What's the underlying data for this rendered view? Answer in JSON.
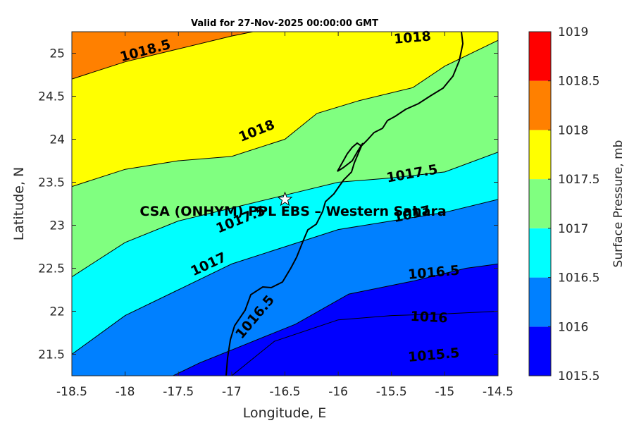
{
  "chart_data": {
    "type": "contour",
    "title": "Valid for 27-Nov-2025 00:00:00 GMT",
    "xlabel": "Longitude, E",
    "ylabel": "Latitude, N",
    "xlim": [
      -18.5,
      -14.5
    ],
    "ylim": [
      21.25,
      25.25
    ],
    "xticks": [
      "-18.5",
      "-18",
      "-17.5",
      "-17",
      "-16.5",
      "-16",
      "-15.5",
      "-15",
      "-14.5"
    ],
    "yticks": [
      "21.5",
      "22",
      "22.5",
      "23",
      "23.5",
      "24",
      "24.5",
      "25"
    ],
    "colorbar": {
      "label": "Surface Pressure, mb",
      "levels": [
        1015.5,
        1016,
        1016.5,
        1017,
        1017.5,
        1018,
        1018.5,
        1019
      ],
      "tick_labels": [
        "1015.5",
        "1016",
        "1016.5",
        "1017",
        "1017.5",
        "1018",
        "1018.5",
        "1019"
      ],
      "colors": [
        "#0000ff",
        "#0080ff",
        "#00ffff",
        "#80ff80",
        "#ffff00",
        "#ff8000",
        "#ff0000",
        "#800000"
      ]
    },
    "contours": [
      {
        "level": 1015.5,
        "label": "1015.5",
        "points": [
          [
            -17.0,
            21.25
          ],
          [
            -16.6,
            21.65
          ],
          [
            -16.0,
            21.9
          ],
          [
            -15.5,
            21.95
          ],
          [
            -15.0,
            21.97
          ],
          [
            -14.5,
            22.0
          ]
        ]
      },
      {
        "level": 1016,
        "label": "1016",
        "points": [
          [
            -17.55,
            21.25
          ],
          [
            -17.3,
            21.4
          ],
          [
            -16.9,
            21.6
          ],
          [
            -16.4,
            21.85
          ],
          [
            -15.9,
            22.2
          ],
          [
            -15.3,
            22.35
          ],
          [
            -14.8,
            22.5
          ],
          [
            -14.5,
            22.55
          ]
        ]
      },
      {
        "level": 1016.5,
        "label": "1016.5",
        "points": [
          [
            -18.5,
            21.5
          ],
          [
            -18.0,
            21.95
          ],
          [
            -17.5,
            22.25
          ],
          [
            -17.0,
            22.55
          ],
          [
            -16.5,
            22.75
          ],
          [
            -16.0,
            22.95
          ],
          [
            -15.5,
            23.05
          ],
          [
            -15.0,
            23.15
          ],
          [
            -14.5,
            23.3
          ]
        ]
      },
      {
        "level": 1017,
        "label": "1017",
        "points": [
          [
            -18.5,
            22.4
          ],
          [
            -18.0,
            22.8
          ],
          [
            -17.5,
            23.05
          ],
          [
            -17.0,
            23.2
          ],
          [
            -16.5,
            23.35
          ],
          [
            -16.0,
            23.5
          ],
          [
            -15.5,
            23.55
          ],
          [
            -15.0,
            23.62
          ],
          [
            -14.5,
            23.85
          ]
        ]
      },
      {
        "level": 1017.5,
        "label": "1017.5",
        "points": [
          [
            -18.5,
            23.45
          ],
          [
            -18.0,
            23.65
          ],
          [
            -17.5,
            23.75
          ],
          [
            -17.0,
            23.8
          ],
          [
            -16.5,
            24.0
          ],
          [
            -16.2,
            24.3
          ],
          [
            -15.8,
            24.45
          ],
          [
            -15.3,
            24.6
          ],
          [
            -15.0,
            24.85
          ],
          [
            -14.5,
            25.15
          ]
        ]
      },
      {
        "level": 1018,
        "label": "1018",
        "points": [
          [
            -18.5,
            24.7
          ],
          [
            -18.0,
            24.9
          ],
          [
            -17.5,
            25.05
          ],
          [
            -17.0,
            25.2
          ],
          [
            -16.8,
            25.25
          ]
        ]
      }
    ],
    "contour_labels": [
      {
        "text": "1018.5",
        "lon": -17.8,
        "lat": 24.98,
        "angle": -15
      },
      {
        "text": "1018",
        "lon": -16.75,
        "lat": 24.05,
        "angle": -22
      },
      {
        "text": "1018",
        "lon": -15.3,
        "lat": 25.13,
        "angle": -5
      },
      {
        "text": "1017.5",
        "lon": -15.3,
        "lat": 23.55,
        "angle": -10
      },
      {
        "text": "1017.5",
        "lon": -16.9,
        "lat": 23.02,
        "angle": -22
      },
      {
        "text": "1017",
        "lon": -17.2,
        "lat": 22.5,
        "angle": -25
      },
      {
        "text": "1017",
        "lon": -15.3,
        "lat": 23.08,
        "angle": -12
      },
      {
        "text": "1016.5",
        "lon": -15.1,
        "lat": 22.4,
        "angle": -5
      },
      {
        "text": "1016.5",
        "lon": -16.75,
        "lat": 21.9,
        "angle": -50
      },
      {
        "text": "1016",
        "lon": -15.15,
        "lat": 21.88,
        "angle": 3
      },
      {
        "text": "1015.5",
        "lon": -15.1,
        "lat": 21.44,
        "angle": -5
      }
    ],
    "site": {
      "name": "CSA (ONHYM) PPL EBS – Western Sahara",
      "lon": -16.5,
      "lat": 23.3
    }
  }
}
